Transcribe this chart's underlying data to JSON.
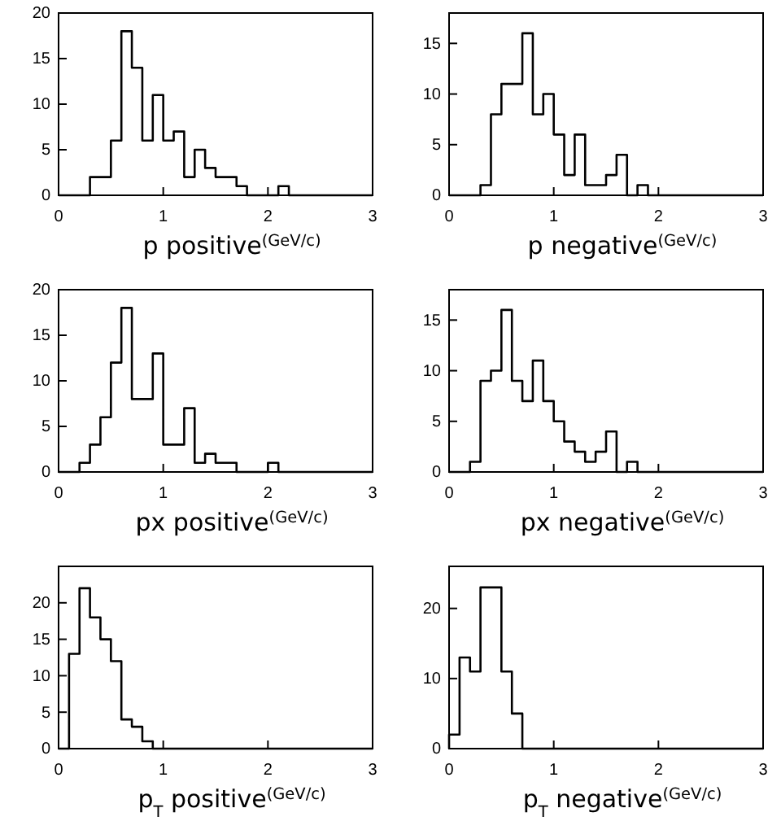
{
  "chart_data": [
    {
      "type": "histogram",
      "xlabel": "p positive$^{(GeV/c)}$",
      "color": "#000000",
      "xlim": [
        0,
        3
      ],
      "xticks": [
        0,
        1,
        2,
        3
      ],
      "ylim": [
        0,
        20
      ],
      "yticks": [
        0,
        5,
        10,
        15,
        20
      ],
      "bins": [
        0,
        0.1,
        0.2,
        0.3,
        0.4,
        0.5,
        0.6,
        0.7,
        0.8,
        0.9,
        1,
        1.1,
        1.2,
        1.3,
        1.4,
        1.5,
        1.6,
        1.7,
        1.8,
        1.9,
        2,
        2.1,
        2.2,
        2.3,
        2.4,
        2.5,
        2.6,
        2.7,
        2.8,
        2.9,
        3
      ],
      "values": [
        0,
        0,
        0,
        2,
        2,
        6,
        18,
        14,
        6,
        11,
        6,
        7,
        2,
        5,
        3,
        2,
        2,
        1,
        0,
        0,
        0,
        1,
        0,
        0,
        0,
        0,
        0,
        0,
        0,
        0
      ]
    },
    {
      "type": "histogram",
      "xlabel": "p negative$^{(GeV/c)}$",
      "color": "#000000",
      "xlim": [
        0,
        3
      ],
      "xticks": [
        0,
        1,
        2,
        3
      ],
      "ylim": [
        0,
        18
      ],
      "yticks": [
        0,
        5,
        10,
        15
      ],
      "bins": [
        0,
        0.1,
        0.2,
        0.3,
        0.4,
        0.5,
        0.6,
        0.7,
        0.8,
        0.9,
        1,
        1.1,
        1.2,
        1.3,
        1.4,
        1.5,
        1.6,
        1.7,
        1.8,
        1.9,
        2,
        2.1,
        2.2,
        2.3,
        2.4,
        2.5,
        2.6,
        2.7,
        2.8,
        2.9,
        3
      ],
      "values": [
        0,
        0,
        0,
        1,
        8,
        11,
        11,
        16,
        8,
        10,
        6,
        2,
        6,
        1,
        1,
        2,
        4,
        0,
        1,
        0,
        0,
        0,
        0,
        0,
        0,
        0,
        0,
        0,
        0,
        0
      ]
    },
    {
      "type": "histogram",
      "xlabel": "px positive$^{(GeV/c)}$",
      "color": "#000000",
      "xlim": [
        0,
        3
      ],
      "xticks": [
        0,
        1,
        2,
        3
      ],
      "ylim": [
        0,
        20
      ],
      "yticks": [
        0,
        5,
        10,
        15,
        20
      ],
      "bins": [
        0,
        0.1,
        0.2,
        0.3,
        0.4,
        0.5,
        0.6,
        0.7,
        0.8,
        0.9,
        1,
        1.1,
        1.2,
        1.3,
        1.4,
        1.5,
        1.6,
        1.7,
        1.8,
        1.9,
        2,
        2.1,
        2.2,
        2.3,
        2.4,
        2.5,
        2.6,
        2.7,
        2.8,
        2.9,
        3
      ],
      "values": [
        0,
        0,
        1,
        3,
        6,
        12,
        18,
        8,
        8,
        13,
        3,
        3,
        7,
        1,
        2,
        1,
        1,
        0,
        0,
        0,
        1,
        0,
        0,
        0,
        0,
        0,
        0,
        0,
        0,
        0
      ]
    },
    {
      "type": "histogram",
      "xlabel": "px negative$^{(GeV/c)}$",
      "color": "#000000",
      "xlim": [
        0,
        3
      ],
      "xticks": [
        0,
        1,
        2,
        3
      ],
      "ylim": [
        0,
        18
      ],
      "yticks": [
        0,
        5,
        10,
        15
      ],
      "bins": [
        0,
        0.1,
        0.2,
        0.3,
        0.4,
        0.5,
        0.6,
        0.7,
        0.8,
        0.9,
        1,
        1.1,
        1.2,
        1.3,
        1.4,
        1.5,
        1.6,
        1.7,
        1.8,
        1.9,
        2,
        2.1,
        2.2,
        2.3,
        2.4,
        2.5,
        2.6,
        2.7,
        2.8,
        2.9,
        3
      ],
      "values": [
        0,
        0,
        1,
        9,
        10,
        16,
        9,
        7,
        11,
        7,
        5,
        3,
        2,
        1,
        2,
        4,
        0,
        1,
        0,
        0,
        0,
        0,
        0,
        0,
        0,
        0,
        0,
        0,
        0,
        0
      ]
    },
    {
      "type": "histogram",
      "xlabel": "p$_{T}$ positive$^{(GeV/c)}$",
      "color": "#000000",
      "xlim": [
        0,
        3
      ],
      "xticks": [
        0,
        1,
        2,
        3
      ],
      "ylim": [
        0,
        25
      ],
      "yticks": [
        0,
        5,
        10,
        15,
        20
      ],
      "bins": [
        0,
        0.1,
        0.2,
        0.3,
        0.4,
        0.5,
        0.6,
        0.7,
        0.8,
        0.9,
        1,
        1.1,
        1.2,
        1.3,
        1.4,
        1.5,
        1.6,
        1.7,
        1.8,
        1.9,
        2,
        2.1,
        2.2,
        2.3,
        2.4,
        2.5,
        2.6,
        2.7,
        2.8,
        2.9,
        3
      ],
      "values": [
        0,
        13,
        22,
        18,
        15,
        12,
        4,
        3,
        1,
        0,
        0,
        0,
        0,
        0,
        0,
        0,
        0,
        0,
        0,
        0,
        0,
        0,
        0,
        0,
        0,
        0,
        0,
        0,
        0,
        0
      ]
    },
    {
      "type": "histogram",
      "xlabel": "p$_{T}$ negative$^{(GeV/c)}$",
      "color": "#000000",
      "xlim": [
        0,
        3
      ],
      "xticks": [
        0,
        1,
        2,
        3
      ],
      "ylim": [
        0,
        26
      ],
      "yticks": [
        0,
        10,
        20
      ],
      "bins": [
        0,
        0.1,
        0.2,
        0.3,
        0.4,
        0.5,
        0.6,
        0.7,
        0.8,
        0.9,
        1,
        1.1,
        1.2,
        1.3,
        1.4,
        1.5,
        1.6,
        1.7,
        1.8,
        1.9,
        2,
        2.1,
        2.2,
        2.3,
        2.4,
        2.5,
        2.6,
        2.7,
        2.8,
        2.9,
        3
      ],
      "values": [
        2,
        13,
        11,
        23,
        23,
        11,
        5,
        0,
        0,
        0,
        0,
        0,
        0,
        0,
        0,
        0,
        0,
        0,
        0,
        0,
        0,
        0,
        0,
        0,
        0,
        0,
        0,
        0,
        0,
        0
      ]
    }
  ]
}
